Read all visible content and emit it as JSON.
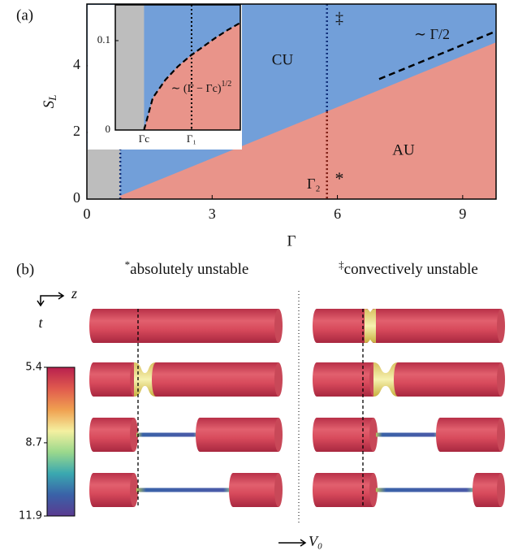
{
  "chart_data": [
    {
      "type": "phase-diagram",
      "panel_label": "(a)",
      "xlabel": "Γ",
      "ylabel": "S",
      "ylabel_sub": "L",
      "xlim": [
        0,
        9.8
      ],
      "ylim": [
        0,
        5.85
      ],
      "xticks": [
        0,
        3,
        6,
        9
      ],
      "yticks": [
        0,
        2,
        4
      ],
      "boundary": {
        "x": [
          0.8,
          9.8
        ],
        "values": [
          0.1,
          4.7
        ]
      },
      "absolute_threshold": {
        "x": [
          0.8,
          0.8
        ],
        "values": [
          0,
          1.5
        ]
      },
      "gray_region": {
        "x": [
          0,
          0.8
        ],
        "values": [
          0,
          1.5
        ]
      },
      "asymptote": {
        "x": [
          7.0,
          9.73
        ],
        "values": [
          3.6,
          5.0
        ],
        "label": "∼ Γ/2"
      },
      "gamma2": {
        "x": 5.75,
        "label": "Γ₂"
      },
      "region_labels": [
        "CU",
        "AU"
      ],
      "markers": [
        "‡",
        "*"
      ],
      "colors": {
        "convective": "#729fd9",
        "absolute": "#e9948a",
        "stable": "#bdbdbd"
      }
    },
    {
      "type": "inset",
      "xlim": [
        0,
        1
      ],
      "ylim": [
        0,
        0.14
      ],
      "xticks": [
        {
          "value": 0.23,
          "label": "Γc"
        },
        {
          "value": 0.61,
          "label": "Γ₁"
        }
      ],
      "yticks": [
        0,
        0.1
      ],
      "x": [
        0.23,
        0.3,
        0.4,
        0.5,
        0.6,
        0.7,
        0.8,
        0.9,
        1.0
      ],
      "values": [
        0,
        0.036,
        0.056,
        0.071,
        0.083,
        0.093,
        0.103,
        0.112,
        0.12
      ],
      "annotation": "∼ (Γ − Γc)",
      "annotation_sup": "1/2"
    },
    {
      "type": "colorbar",
      "lim": [
        5.4,
        11.9
      ],
      "ticks": [
        5.4,
        8.7,
        11.9
      ],
      "colors": [
        "#b8204e",
        "#e05a4e",
        "#f0a050",
        "#f4f0a0",
        "#9ad88c",
        "#3aa8b0",
        "#3a62a8",
        "#5a3a90"
      ]
    }
  ],
  "panel_b": {
    "label": "(b)",
    "titles": [
      {
        "marker": "*",
        "text": "absolutely unstable"
      },
      {
        "marker": "‡",
        "text": "convectively unstable"
      }
    ],
    "axis_z": "z",
    "axis_t": "t",
    "axis_v": "V₀"
  }
}
